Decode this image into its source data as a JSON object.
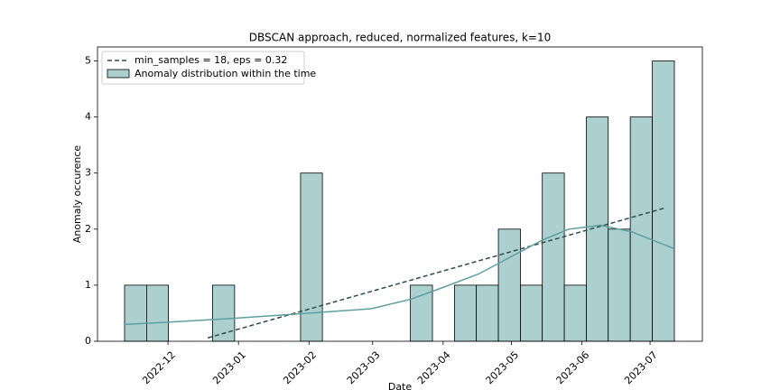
{
  "chart_data": {
    "type": "histogram",
    "title": "DBSCAN approach, reduced, normalized features, k=10",
    "x_label": "Date",
    "y_label": "Anomaly occurence",
    "name": "Anomaly distribution within the time",
    "color": "#acd0d0",
    "edgecolor": "#000000",
    "bins": [
      19307.9,
      19317.6,
      19327.2,
      19336.9,
      19346.6,
      19356.3,
      19365.9,
      19375.6,
      19385.3,
      19394.9,
      19404.6,
      19414.3,
      19423.9,
      19433.6,
      19443.3,
      19453.0,
      19462.6,
      19472.3,
      19482.0,
      19491.6,
      19501.3,
      19511.0,
      19520.6,
      19530.3,
      19540.0,
      19549.7
    ],
    "values": [
      1,
      1,
      0,
      0,
      1,
      0,
      0,
      0,
      3,
      0,
      0,
      0,
      0,
      1,
      0,
      1,
      1,
      2,
      1,
      3,
      1,
      4,
      2,
      4,
      5
    ],
    "lines": [
      {
        "name": "min_samples = 18, eps = 0.32",
        "color": "#2f4f4f",
        "style": "dashed",
        "x": [
          19344.5,
          19545.7
        ],
        "y": [
          0.06,
          2.38
        ]
      },
      {
        "color": "#5f9ea0",
        "style": "solid",
        "x": [
          19307.9,
          19327,
          19356.4,
          19388.5,
          19416.3,
          19433.8,
          19447.3,
          19463.6,
          19477.5,
          19491.4,
          19503.3,
          19517.2,
          19531.1,
          19549.7
        ],
        "y": [
          0.3,
          0.34,
          0.41,
          0.5,
          0.58,
          0.75,
          0.95,
          1.2,
          1.5,
          1.8,
          2.0,
          2.07,
          1.95,
          1.65
        ]
      }
    ],
    "xlim": [
      19296,
      19562
    ],
    "ylim": [
      0,
      5.25
    ],
    "xticks": [
      {
        "value": 19327,
        "label": "2022-12"
      },
      {
        "value": 19358,
        "label": "2023-01"
      },
      {
        "value": 19389,
        "label": "2023-02"
      },
      {
        "value": 19417,
        "label": "2023-03"
      },
      {
        "value": 19448,
        "label": "2023-04"
      },
      {
        "value": 19478,
        "label": "2023-05"
      },
      {
        "value": 19509,
        "label": "2023-06"
      },
      {
        "value": 19539,
        "label": "2023-07"
      }
    ],
    "yticks": [
      0,
      1,
      2,
      3,
      4,
      5
    ],
    "legend": "upper left"
  }
}
